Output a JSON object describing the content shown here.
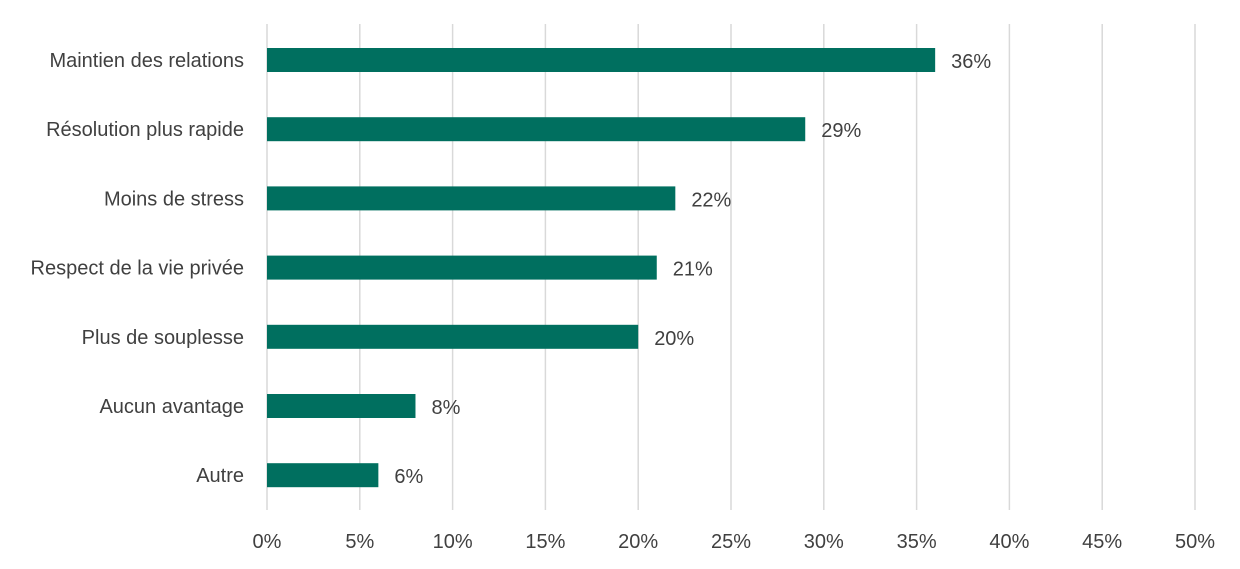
{
  "chart_data": {
    "type": "bar",
    "orientation": "horizontal",
    "categories": [
      "Maintien des relations",
      "Résolution plus rapide",
      "Moins de stress",
      "Respect de la vie privée",
      "Plus de souplesse",
      "Aucun avantage",
      "Autre"
    ],
    "values": [
      36,
      29,
      22,
      21,
      20,
      8,
      6
    ],
    "data_labels": [
      "36%",
      "29%",
      "22%",
      "21%",
      "20%",
      "8%",
      "6%"
    ],
    "xlim": [
      0,
      50
    ],
    "x_ticks": [
      0,
      5,
      10,
      15,
      20,
      25,
      30,
      35,
      40,
      45,
      50
    ],
    "x_tick_labels": [
      "0%",
      "5%",
      "10%",
      "15%",
      "20%",
      "25%",
      "30%",
      "35%",
      "40%",
      "45%",
      "50%"
    ],
    "grid": true,
    "legend": "none",
    "bar_color": "#006F5F",
    "title": "",
    "xlabel": "",
    "ylabel": ""
  }
}
